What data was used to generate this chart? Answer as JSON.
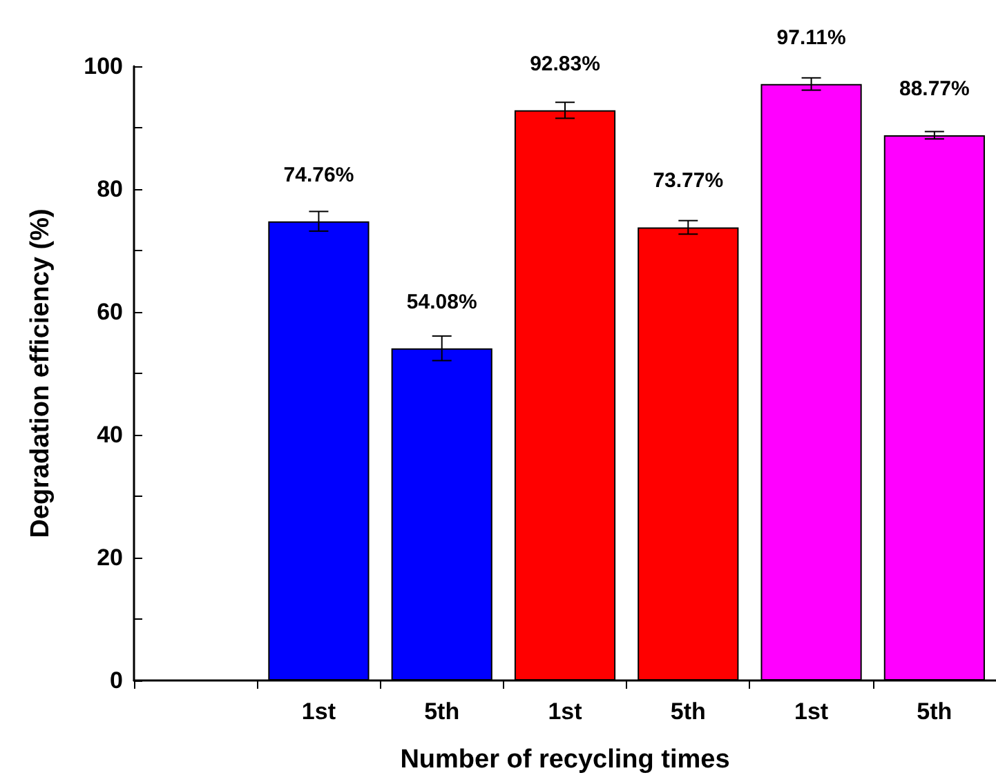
{
  "chart_data": {
    "type": "bar",
    "xlabel": "Number of recycling times",
    "ylabel": "Degradation efficiency (%)",
    "categories": [
      null,
      "1st",
      "5th",
      "1st",
      "5th",
      "1st",
      "5th"
    ],
    "values": [
      null,
      74.76,
      54.08,
      92.83,
      73.77,
      97.11,
      88.77
    ],
    "colors": [
      "#0000ff",
      "#0000ff",
      "#0000ff",
      "#ff0000",
      "#ff0000",
      "#ff00ff",
      "#ff00ff"
    ],
    "errors": [
      null,
      1.6,
      2.0,
      1.3,
      1.1,
      1.0,
      0.6
    ],
    "value_labels": [
      null,
      "74.76%",
      "54.08%",
      "92.83%",
      "73.77%",
      "97.11%",
      "88.77%"
    ],
    "ylim": [
      0,
      100
    ],
    "yticks": [
      0,
      {
        "value": 10,
        "label": null
      },
      20,
      {
        "value": 30,
        "label": null
      },
      40,
      {
        "value": 50,
        "label": null
      },
      60,
      {
        "value": 70,
        "label": null
      },
      80,
      {
        "value": 90,
        "label": null
      },
      100
    ],
    "grid": false
  }
}
